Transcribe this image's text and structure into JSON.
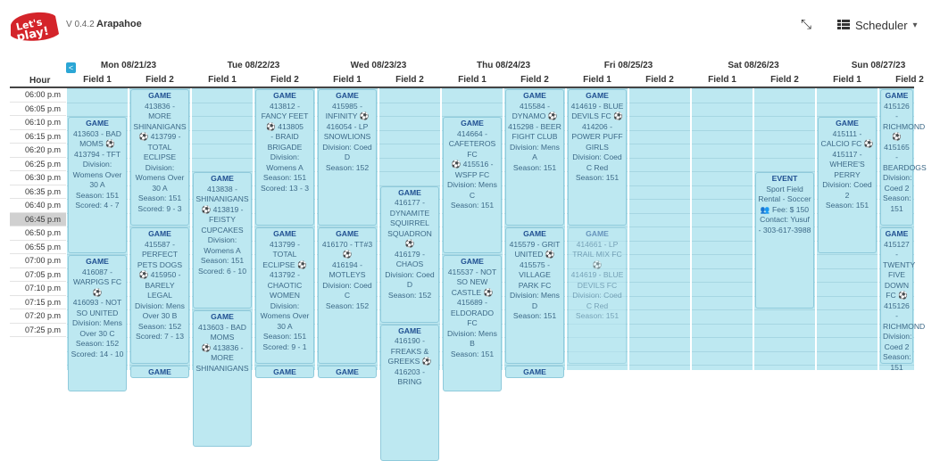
{
  "app": {
    "version": "V 0.4.2",
    "venue": "Arapahoe",
    "scheduler_label": "Scheduler",
    "icons": {
      "logo": "lets-play-logo",
      "collapse": "compress-arrows-icon",
      "scheduler": "table-list-icon",
      "dropdown": "chevron-down-icon",
      "prev": "chevron-left-icon"
    },
    "logo_text": "Let's play!"
  },
  "header": {
    "prev_label": "<",
    "hour_label": "Hour"
  },
  "days": [
    {
      "label": "Mon 08/21/23",
      "fields": [
        "Field 1",
        "Field 2"
      ]
    },
    {
      "label": "Tue 08/22/23",
      "fields": [
        "Field 1",
        "Field 2"
      ]
    },
    {
      "label": "Wed 08/23/23",
      "fields": [
        "Field 1",
        "Field 2"
      ]
    },
    {
      "label": "Thu 08/24/23",
      "fields": [
        "Field 1",
        "Field 2"
      ]
    },
    {
      "label": "Fri 08/25/23",
      "fields": [
        "Field 1",
        "Field 2"
      ]
    },
    {
      "label": "Sat 08/26/23",
      "fields": [
        "Field 1",
        "Field 2"
      ]
    },
    {
      "label": "Sun 08/27/23",
      "fields": [
        "Field 1",
        "Field 2"
      ]
    }
  ],
  "times": [
    "06:00 p.m",
    "06:05 p.m",
    "06:10 p.m",
    "06:15 p.m",
    "06:20 p.m",
    "06:25 p.m",
    "06:30 p.m",
    "06:35 p.m",
    "06:40 p.m",
    "06:45 p.m",
    "06:50 p.m",
    "06:55 p.m",
    "07:00 p.m",
    "07:05 p.m",
    "07:10 p.m",
    "07:15 p.m",
    "07:20 p.m",
    "07:25 p.m"
  ],
  "current_time_index": 9,
  "events": [
    {
      "col": 0,
      "row": 2,
      "len": 10,
      "lines": [
        "GAME",
        "413603 - BAD MOMS ⚽ 413794 - TFT",
        "Division:",
        "Womens Over 30 A",
        "Season: 151",
        "Scored: 4 - 7"
      ]
    },
    {
      "col": 0,
      "row": 12,
      "len": 10,
      "lines": [
        "GAME",
        "416087 - WARPIGS FC ⚽",
        "416093 - NOT SO UNITED",
        "Division: Mens Over 30 C",
        "Season: 152",
        "Scored: 14 - 10"
      ]
    },
    {
      "col": 1,
      "row": 0,
      "len": 10,
      "lines": [
        "GAME",
        "413836 - MORE SHINANIGANS",
        "⚽ 413799 -",
        "TOTAL ECLIPSE",
        "Division:",
        "Womens Over 30 A",
        "Season: 151",
        "Scored: 9 - 3"
      ]
    },
    {
      "col": 1,
      "row": 10,
      "len": 10,
      "lines": [
        "GAME",
        "415587 - PERFECT PETS DOGS ⚽ 415950 - BARELY LEGAL",
        "Division: Mens Over 30 B",
        "Season: 152",
        "Scored: 7 - 13"
      ]
    },
    {
      "col": 1,
      "row": 20,
      "len": 1,
      "lines": [
        "GAME"
      ]
    },
    {
      "col": 2,
      "row": 6,
      "len": 10,
      "lines": [
        "GAME",
        "413838 - SHINANIGANS",
        "⚽ 413819 - FEISTY",
        "CUPCAKES",
        "Division:",
        "Womens A",
        "Season: 151",
        "Scored: 6 - 10"
      ]
    },
    {
      "col": 2,
      "row": 16,
      "len": 10,
      "lines": [
        "GAME",
        "413603 - BAD MOMS",
        "⚽ 413836 - MORE SHINANIGANS"
      ]
    },
    {
      "col": 3,
      "row": 0,
      "len": 10,
      "lines": [
        "GAME",
        "413812 - FANCY FEET ⚽ 413805",
        "- BRAID BRIGADE",
        "Division:",
        "Womens A",
        "Season: 151",
        "Scored: 13 - 3"
      ]
    },
    {
      "col": 3,
      "row": 10,
      "len": 10,
      "lines": [
        "GAME",
        "413799 - TOTAL ECLIPSE ⚽",
        "413792 - CHAOTIC WOMEN",
        "Division: Womens Over 30 A",
        "Season: 151",
        "Scored: 9 - 1"
      ]
    },
    {
      "col": 3,
      "row": 20,
      "len": 1,
      "lines": [
        "GAME"
      ]
    },
    {
      "col": 4,
      "row": 0,
      "len": 10,
      "lines": [
        "GAME",
        "415985 - INFINITY ⚽",
        "416054 - LP SNOWLIONS",
        "Division: Coed D",
        "Season: 152"
      ]
    },
    {
      "col": 4,
      "row": 10,
      "len": 10,
      "lines": [
        "GAME",
        "416170 - TT#3 ⚽",
        "416194 - MOTLEYS",
        "Division: Coed C",
        "Season: 152"
      ]
    },
    {
      "col": 4,
      "row": 20,
      "len": 1,
      "lines": [
        "GAME"
      ]
    },
    {
      "col": 5,
      "row": 7,
      "len": 10,
      "lines": [
        "GAME",
        "416177 - DYNAMITE SQUIRREL SQUADRON ⚽",
        "416179 - CHAOS",
        "Division: Coed D",
        "Season: 152"
      ]
    },
    {
      "col": 5,
      "row": 17,
      "len": 10,
      "lines": [
        "GAME",
        "416190 - FREAKS & GREEKS ⚽",
        "416203 - BRING"
      ]
    },
    {
      "col": 6,
      "row": 2,
      "len": 10,
      "lines": [
        "GAME",
        "414664 - CAFETEROS FC",
        "⚽ 415516 - WSFP FC",
        "Division: Mens C",
        "Season: 151"
      ]
    },
    {
      "col": 6,
      "row": 12,
      "len": 10,
      "lines": [
        "GAME",
        "415537 - NOT SO NEW CASTLE ⚽",
        "415689 - ELDORADO FC",
        "Division: Mens B",
        "Season: 151"
      ]
    },
    {
      "col": 7,
      "row": 0,
      "len": 10,
      "lines": [
        "GAME",
        "415584 - DYNAMO ⚽",
        "415298 - BEER FIGHT CLUB",
        "Division: Mens A",
        "Season: 151"
      ]
    },
    {
      "col": 7,
      "row": 10,
      "len": 10,
      "lines": [
        "GAME",
        "415579 - GRIT UNITED ⚽",
        "415575 - VILLAGE PARK FC",
        "Division: Mens D",
        "Season: 151"
      ]
    },
    {
      "col": 7,
      "row": 20,
      "len": 1,
      "lines": [
        "GAME"
      ]
    },
    {
      "col": 8,
      "row": 0,
      "len": 10,
      "lines": [
        "GAME",
        "414619 - BLUE DEVILS FC ⚽",
        "414206 - POWER PUFF GIRLS",
        "Division: Coed C Red",
        "Season: 151"
      ]
    },
    {
      "col": 8,
      "row": 10,
      "len": 10,
      "faded": true,
      "lines": [
        "GAME",
        "414661 - LP TRAIL MIX FC ⚽",
        "414619 - BLUE DEVILS FC",
        "Division: Coed C Red",
        "Season: 151"
      ]
    },
    {
      "col": 11,
      "row": 6,
      "len": 10,
      "lines": [
        "EVENT",
        "Sport Field Rental - Soccer",
        "👥 Fee: $ 150",
        "Contact: Yusuf - 303-617-3988"
      ]
    },
    {
      "col": 12,
      "row": 2,
      "len": 10,
      "lines": [
        "GAME",
        "415111 - CALCIO FC ⚽ 415117 - WHERE'S PERRY",
        "Division: Coed 2",
        "Season: 151"
      ]
    },
    {
      "col": 13,
      "row": 0,
      "len": 10,
      "lines": [
        "GAME",
        "415126 - RICHMOND",
        "⚽ 415165 - BEARDOGS",
        "Division: Coed 2",
        "Season: 151"
      ]
    },
    {
      "col": 13,
      "row": 10,
      "len": 10,
      "lines": [
        "GAME",
        "415127 - TWENTY FIVE DOWN FC ⚽",
        "415126 - RICHMOND",
        "Division: Coed 2",
        "Season: 151"
      ]
    }
  ]
}
